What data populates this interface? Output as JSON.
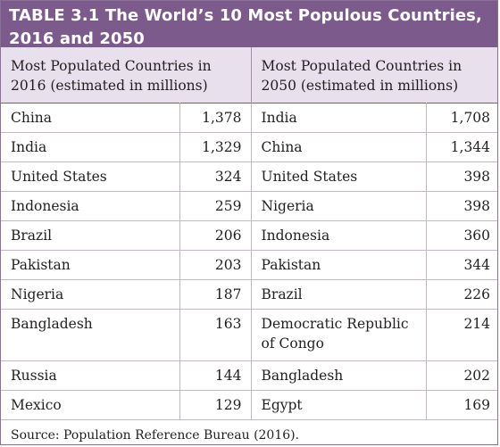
{
  "title_line1": "TABLE 3.1 The World’s 10 Most Populous Countries,",
  "title_line2": "2016 and 2050",
  "header_left": "Most Populated Countries in 2016 (estimated in millions)",
  "header_right": "Most Populated Countries in 2050 (estimated in millions)",
  "rows": [
    {
      "c2016": "China",
      "v2016": "1,378",
      "c2050": "India",
      "v2050": "1,708"
    },
    {
      "c2016": "India",
      "v2016": "1,329",
      "c2050": "China",
      "v2050": "1,344"
    },
    {
      "c2016": "United States",
      "v2016": "324",
      "c2050": "United States",
      "v2050": "398"
    },
    {
      "c2016": "Indonesia",
      "v2016": "259",
      "c2050": "Nigeria",
      "v2050": "398"
    },
    {
      "c2016": "Brazil",
      "v2016": "206",
      "c2050": "Indonesia",
      "v2050": "360"
    },
    {
      "c2016": "Pakistan",
      "v2016": "203",
      "c2050": "Pakistan",
      "v2050": "344"
    },
    {
      "c2016": "Nigeria",
      "v2016": "187",
      "c2050": "Brazil",
      "v2050": "226"
    },
    {
      "c2016": "Bangladesh",
      "v2016": "163",
      "c2050": "Democratic Republic of Congo",
      "v2050": "214"
    },
    {
      "c2016": "Russia",
      "v2016": "144",
      "c2050": "Bangladesh",
      "v2050": "202"
    },
    {
      "c2016": "Mexico",
      "v2016": "129",
      "c2050": "Egypt",
      "v2050": "169"
    }
  ],
  "source": "Source: Population Reference Bureau (2016).",
  "colors": {
    "title_bg": "#7c5b8c",
    "header_bg": "#e8e0ec",
    "rule": "#c5b7cc"
  }
}
